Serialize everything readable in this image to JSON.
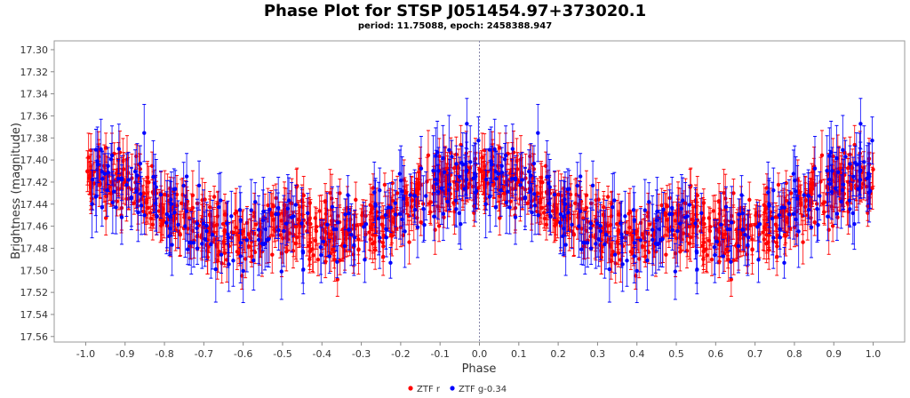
{
  "chart_data": {
    "type": "scatter",
    "title": "Phase Plot for STSP J051454.97+373020.1",
    "subtitle": "period: 11.75088, epoch: 2458388.947",
    "xlabel": "Phase",
    "ylabel": "Brightness (magnitude)",
    "xlim": [
      -1.08,
      1.08
    ],
    "ylim": [
      17.565,
      17.292
    ],
    "y_inverted": true,
    "x_ticks": [
      -1.0,
      -0.9,
      -0.8,
      -0.7,
      -0.6,
      -0.5,
      -0.4,
      -0.3,
      -0.2,
      -0.1,
      0.0,
      0.1,
      0.2,
      0.3,
      0.4,
      0.5,
      0.6,
      0.7,
      0.8,
      0.9,
      1.0
    ],
    "x_tick_labels": [
      "-1.0",
      "-0.9",
      "-0.8",
      "-0.7",
      "-0.6",
      "-0.5",
      "-0.4",
      "-0.3",
      "-0.2",
      "-0.1",
      "0.0",
      "0.1",
      "0.2",
      "0.3",
      "0.4",
      "0.5",
      "0.6",
      "0.7",
      "0.8",
      "0.9",
      "1.0"
    ],
    "y_ticks": [
      17.3,
      17.32,
      17.34,
      17.36,
      17.38,
      17.4,
      17.42,
      17.44,
      17.46,
      17.48,
      17.5,
      17.52,
      17.54,
      17.56
    ],
    "y_tick_labels": [
      "17.30",
      "17.32",
      "17.34",
      "17.36",
      "17.38",
      "17.40",
      "17.42",
      "17.44",
      "17.46",
      "17.48",
      "17.50",
      "17.52",
      "17.54",
      "17.56"
    ],
    "reference_line_x": 0.0,
    "legend_position": "bottom-center",
    "series": [
      {
        "name": "ZTF r",
        "color": "#ff0000",
        "curve": {
          "phase": [
            0.0,
            0.05,
            0.1,
            0.15,
            0.2,
            0.25,
            0.3,
            0.35,
            0.4,
            0.45,
            0.5
          ],
          "mag": [
            17.415,
            17.417,
            17.422,
            17.43,
            17.443,
            17.455,
            17.463,
            17.468,
            17.469,
            17.465,
            17.454
          ]
        },
        "scatter": 0.026,
        "error_typical": 0.015,
        "points_per_cycle": 560
      },
      {
        "name": "ZTF g-0.34",
        "color": "#0000ff",
        "curve": {
          "phase": [
            0.0,
            0.05,
            0.1,
            0.15,
            0.2,
            0.25,
            0.3,
            0.35,
            0.4,
            0.45,
            0.5
          ],
          "mag": [
            17.415,
            17.417,
            17.422,
            17.43,
            17.443,
            17.455,
            17.463,
            17.468,
            17.469,
            17.465,
            17.454
          ]
        },
        "scatter": 0.033,
        "error_typical": 0.022,
        "points_per_cycle": 210
      }
    ]
  }
}
